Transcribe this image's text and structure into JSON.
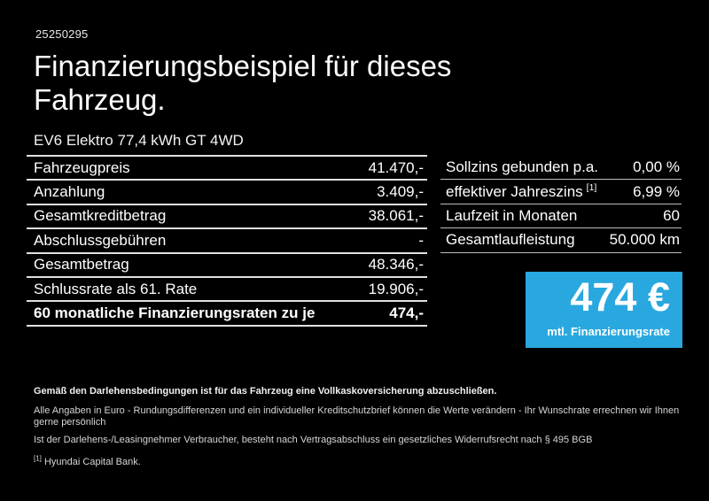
{
  "page": {
    "doc_number": "25250295",
    "title": "Finanzierungsbeispiel für dieses Fahrzeug.",
    "vehicle": "EV6 Elektro 77,4 kWh GT 4WD"
  },
  "finance_table": {
    "rows": [
      {
        "label": "Fahrzeugpreis",
        "value": "41.470,-"
      },
      {
        "label": "Anzahlung",
        "value": "3.409,-"
      },
      {
        "label": "Gesamtkreditbetrag",
        "value": "38.061,-"
      },
      {
        "label": "Abschlussgebühren",
        "value": "-"
      },
      {
        "label": "Gesamtbetrag",
        "value": "48.346,-"
      },
      {
        "label": "Schlussrate als 61. Rate",
        "value": "19.906,-"
      },
      {
        "label": "60 monatliche Finanzierungsraten zu je",
        "value": "474,-",
        "bold": true
      }
    ]
  },
  "conditions_table": {
    "rows": [
      {
        "label": "Sollzins gebunden p.a.",
        "value": "0,00 %"
      },
      {
        "label": "effektiver Jahreszins",
        "label_sup": "[1]",
        "value": "6,99 %"
      },
      {
        "label": "Laufzeit in Monaten",
        "value": "60"
      },
      {
        "label": "Gesamtlaufleistung",
        "value": "50.000 km"
      }
    ]
  },
  "rate_box": {
    "amount": "474 €",
    "caption": "mtl. Finanzierungsrate",
    "background": "#29A8E0"
  },
  "footnotes": {
    "line1": "Gemäß den Darlehensbedingungen ist für das Fahrzeug eine Vollkaskoversicherung abzuschließen.",
    "line2": "Alle Angaben in Euro - Rundungsdifferenzen und ein individueller Kreditschutzbrief können die Werte verändern - Ihr Wunschrate errechnen wir Ihnen gerne persönlich",
    "line3": "Ist der Darlehens-/Leasingnehmer Verbraucher, besteht nach Vertragsabschluss ein gesetzliches Widerrufsrecht nach § 495 BGB",
    "footnote1_marker": "[1]",
    "footnote1_text": "Hyundai Capital Bank."
  },
  "colors": {
    "background": "#000000",
    "text": "#FFFFFF",
    "accent_blue": "#29A8E0",
    "divider_left": "#E0E0E0",
    "divider_right": "#BDBDBD"
  }
}
